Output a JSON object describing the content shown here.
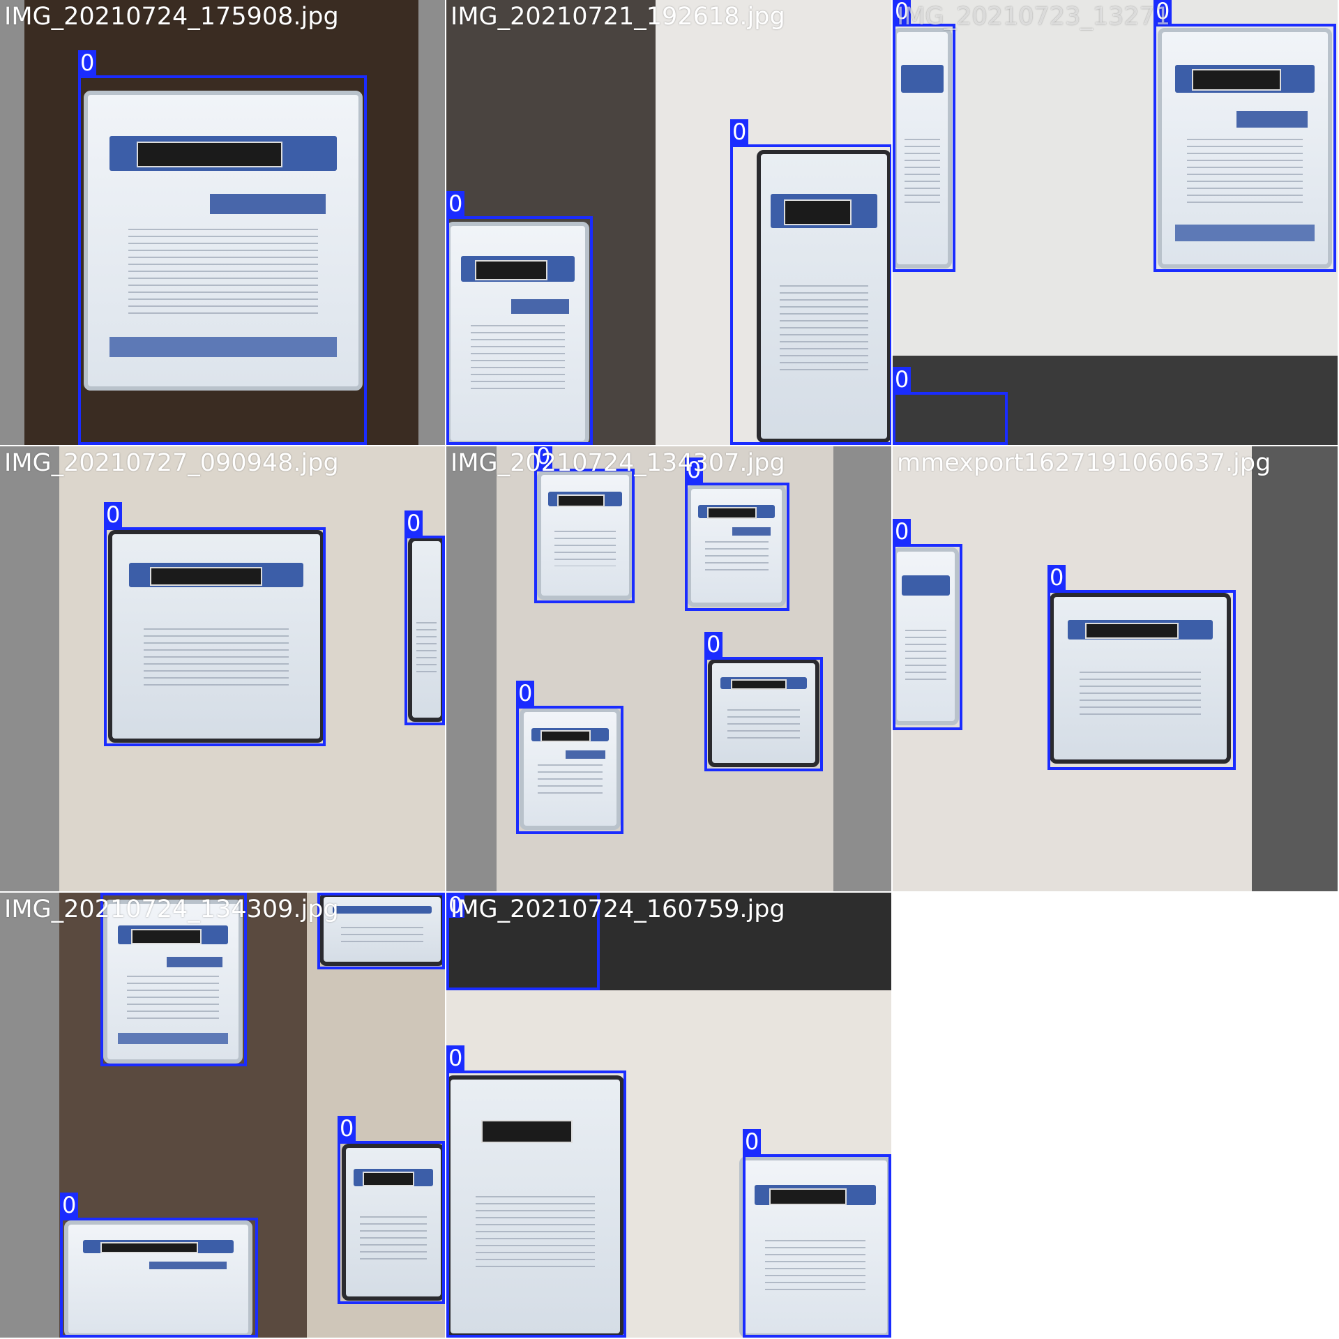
{
  "mosaic": {
    "tiles": [
      {
        "title": "IMG_20210724_175908.jpg",
        "boxes": [
          {
            "label": "0"
          }
        ]
      },
      {
        "title": "IMG_20210721_192618.jpg",
        "boxes": [
          {
            "label": "0"
          },
          {
            "label": "0"
          }
        ]
      },
      {
        "title": "IMG_20210723_13271",
        "boxes": [
          {
            "label": "0"
          },
          {
            "label": "0"
          },
          {
            "label": "0"
          }
        ]
      },
      {
        "title": "IMG_20210727_090948.jpg",
        "boxes": [
          {
            "label": "0"
          },
          {
            "label": "0"
          }
        ]
      },
      {
        "title": "IMG_20210724_134307.jpg",
        "boxes": [
          {
            "label": "0"
          },
          {
            "label": "0"
          },
          {
            "label": "0"
          },
          {
            "label": "0"
          }
        ]
      },
      {
        "title": "mmexport1627191060637.jpg",
        "boxes": [
          {
            "label": "0"
          },
          {
            "label": "0"
          }
        ]
      },
      {
        "title": "IMG_20210724_134309.jpg",
        "boxes": [
          {
            "label": "0"
          },
          {
            "label": "0"
          },
          {
            "label": "0"
          },
          {
            "label": "0"
          }
        ]
      },
      {
        "title": "IMG_20210724_160759.jpg",
        "boxes": [
          {
            "label": "0"
          },
          {
            "label": "0"
          },
          {
            "label": "0"
          }
        ]
      }
    ],
    "colors": {
      "box_color": "#1a2cff",
      "title_color": "#ffffff",
      "padding_gray": "#8d8d8d"
    }
  }
}
